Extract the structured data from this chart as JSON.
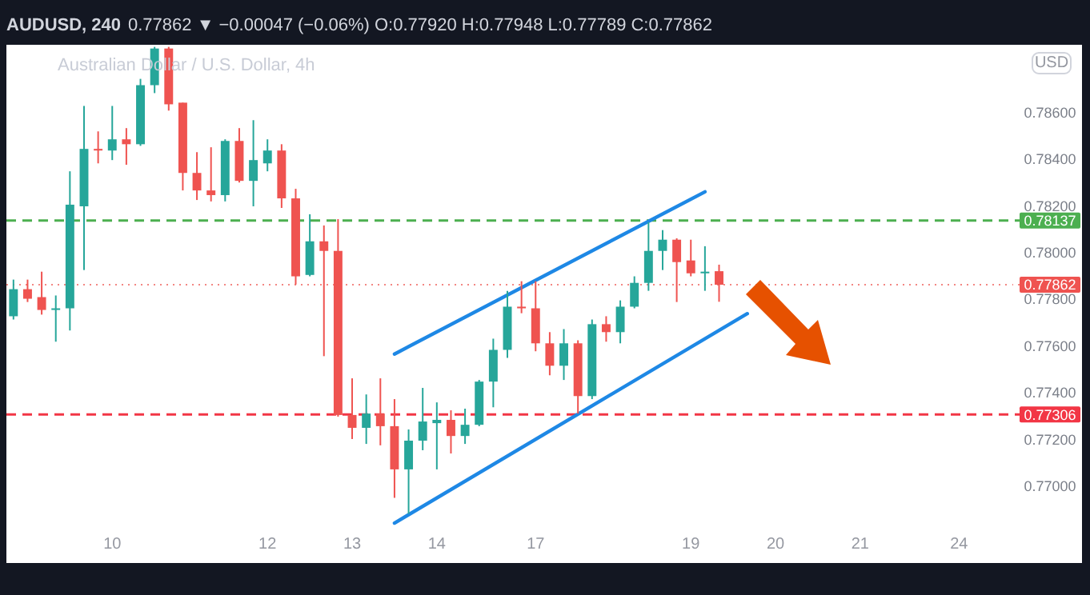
{
  "chart_data": {
    "type": "candlestick",
    "title": "AUDUSD, 240",
    "subtitle": "0.77862 ▼ −0.00047 (−0.06%) O:0.77920 H:0.77948 L:0.77789 C:0.77862",
    "annotations": [
      "Australian Dollar / U.S. Dollar, 4h",
      "USD"
    ],
    "categories": [
      null,
      null,
      null,
      null,
      null,
      null,
      null,
      "10",
      null,
      null,
      null,
      null,
      null,
      null,
      null,
      null,
      null,
      null,
      "12",
      null,
      null,
      null,
      null,
      null,
      "13",
      null,
      null,
      null,
      null,
      null,
      "14",
      null,
      null,
      null,
      null,
      null,
      null,
      "17",
      null,
      null,
      null,
      null,
      null,
      null,
      null,
      null,
      null,
      null,
      "19",
      null,
      null,
      null,
      null,
      null,
      "20",
      null,
      null,
      null,
      null,
      null,
      "21",
      null,
      null,
      null,
      null,
      null,
      null,
      "24",
      null,
      null,
      null
    ],
    "ohlc": [
      [
        0.77727,
        0.77884,
        0.77713,
        0.77843
      ],
      [
        0.77843,
        0.77884,
        0.77788,
        0.77802
      ],
      [
        0.77809,
        0.77918,
        0.77734,
        0.77754
      ],
      [
        0.77754,
        0.77816,
        0.77618,
        0.77761
      ],
      [
        0.77761,
        0.78348,
        0.77666,
        0.78205
      ],
      [
        0.78198,
        0.78628,
        0.77925,
        0.78444
      ],
      [
        0.78444,
        0.78519,
        0.78382,
        0.78437
      ],
      [
        0.78437,
        0.78628,
        0.78396,
        0.78485
      ],
      [
        0.78485,
        0.78533,
        0.78376,
        0.78464
      ],
      [
        0.78464,
        0.78744,
        0.78457,
        0.78717
      ],
      [
        0.78717,
        0.78881,
        0.78683,
        0.78874
      ],
      [
        0.78874,
        0.78881,
        0.78608,
        0.78635
      ],
      [
        0.78642,
        0.78642,
        0.78266,
        0.78341
      ],
      [
        0.78341,
        0.7843,
        0.78225,
        0.78266
      ],
      [
        0.78266,
        0.78451,
        0.78219,
        0.78246
      ],
      [
        0.78246,
        0.78485,
        0.78219,
        0.78478
      ],
      [
        0.78478,
        0.78533,
        0.783,
        0.78307
      ],
      [
        0.78307,
        0.78567,
        0.78198,
        0.78396
      ],
      [
        0.78382,
        0.78485,
        0.78348,
        0.78437
      ],
      [
        0.78437,
        0.78464,
        0.78191,
        0.78232
      ],
      [
        0.78232,
        0.78273,
        0.77863,
        0.77898
      ],
      [
        0.77904,
        0.78164,
        0.77898,
        0.78048
      ],
      [
        0.78048,
        0.78116,
        0.77556,
        0.78007
      ],
      [
        0.78007,
        0.78143,
        0.77297,
        0.77304
      ],
      [
        0.77304,
        0.77461,
        0.77201,
        0.77249
      ],
      [
        0.77249,
        0.77392,
        0.7718,
        0.7731
      ],
      [
        0.7731,
        0.77461,
        0.77174,
        0.77256
      ],
      [
        0.77256,
        0.77372,
        0.76949,
        0.77071
      ],
      [
        0.77071,
        0.77242,
        0.7688,
        0.77194
      ],
      [
        0.77194,
        0.7742,
        0.77153,
        0.77276
      ],
      [
        0.77269,
        0.77358,
        0.77071,
        0.77283
      ],
      [
        0.77283,
        0.77324,
        0.77139,
        0.77214
      ],
      [
        0.77214,
        0.77331,
        0.7718,
        0.77262
      ],
      [
        0.77262,
        0.77454,
        0.77256,
        0.77447
      ],
      [
        0.77447,
        0.77631,
        0.77337,
        0.77583
      ],
      [
        0.77583,
        0.77836,
        0.77549,
        0.77768
      ],
      [
        0.77768,
        0.77877,
        0.7774,
        0.77761
      ],
      [
        0.77761,
        0.77877,
        0.77577,
        0.77611
      ],
      [
        0.77611,
        0.77659,
        0.77474,
        0.77515
      ],
      [
        0.77515,
        0.77672,
        0.77454,
        0.77611
      ],
      [
        0.77611,
        0.77624,
        0.7731,
        0.77385
      ],
      [
        0.77385,
        0.77713,
        0.77372,
        0.77693
      ],
      [
        0.77693,
        0.77727,
        0.77618,
        0.77659
      ],
      [
        0.77659,
        0.77795,
        0.77611,
        0.77768
      ],
      [
        0.77768,
        0.77898,
        0.77761,
        0.7787
      ],
      [
        0.7787,
        0.7813,
        0.77836,
        0.78007
      ],
      [
        0.78007,
        0.78096,
        0.77925,
        0.78055
      ],
      [
        0.78055,
        0.78061,
        0.77788,
        0.77959
      ],
      [
        0.77966,
        0.78055,
        0.77898,
        0.77911
      ],
      [
        0.77911,
        0.78027,
        0.77836,
        0.77918
      ],
      [
        0.7792,
        0.77948,
        0.77789,
        0.77862
      ],
      null,
      null,
      null,
      null,
      null,
      null,
      null,
      null,
      null,
      null,
      null,
      null,
      null,
      null,
      null,
      null,
      null,
      null,
      null,
      null
    ],
    "colors": [
      "#26a69a",
      "#ef5350",
      "#ef5350",
      "#26a69a",
      "#26a69a",
      "#26a69a",
      "#ef5350",
      "#26a69a",
      "#ef5350",
      "#26a69a",
      "#26a69a",
      "#ef5350",
      "#ef5350",
      "#ef5350",
      "#ef5350",
      "#26a69a",
      "#ef5350",
      "#26a69a",
      "#26a69a",
      "#ef5350",
      "#ef5350",
      "#26a69a",
      "#ef5350",
      "#ef5350",
      "#ef5350",
      "#26a69a",
      "#ef5350",
      "#ef5350",
      "#26a69a",
      "#26a69a",
      "#26a69a",
      "#ef5350",
      "#26a69a",
      "#26a69a",
      "#26a69a",
      "#26a69a",
      "#ef5350",
      "#ef5350",
      "#ef5350",
      "#26a69a",
      "#ef5350",
      "#26a69a",
      "#ef5350",
      "#26a69a",
      "#26a69a",
      "#26a69a",
      "#26a69a",
      "#ef5350",
      "#ef5350",
      "#26a69a",
      "#ef5350",
      null,
      null,
      null,
      null,
      null,
      null,
      null,
      null,
      null,
      null,
      null,
      null,
      null,
      null,
      null,
      null,
      null,
      null,
      null,
      null
    ],
    "series": [
      {
        "type": "line",
        "color": "#1e88e5",
        "values": [
          null,
          null,
          null,
          null,
          null,
          null,
          null,
          null,
          null,
          null,
          null,
          null,
          null,
          null,
          null,
          null,
          null,
          null,
          null,
          null,
          null,
          null,
          null,
          null,
          null,
          null,
          null,
          0.77565,
          null,
          null,
          null,
          null,
          null,
          null,
          null,
          null,
          null,
          null,
          null,
          null,
          null,
          null,
          null,
          null,
          null,
          null,
          null,
          null,
          null,
          0.7826,
          null,
          null,
          null,
          null,
          null,
          null,
          null,
          null,
          null,
          null,
          null,
          null,
          null,
          null,
          null,
          null,
          null,
          null,
          null,
          null,
          null
        ]
      },
      {
        "type": "line",
        "color": "#1e88e5",
        "values": [
          null,
          null,
          null,
          null,
          null,
          null,
          null,
          null,
          null,
          null,
          null,
          null,
          null,
          null,
          null,
          null,
          null,
          null,
          null,
          null,
          null,
          null,
          null,
          null,
          null,
          null,
          null,
          0.76841,
          null,
          null,
          null,
          null,
          null,
          null,
          null,
          null,
          null,
          null,
          null,
          null,
          null,
          null,
          null,
          null,
          null,
          null,
          null,
          null,
          null,
          null,
          null,
          null,
          0.77738,
          null,
          null,
          null,
          null,
          null,
          null,
          null,
          null,
          null,
          null,
          null,
          null,
          null,
          null,
          null,
          null,
          null,
          null
        ]
      }
    ],
    "ref_lines": [
      {
        "axis": "y",
        "value": 0.78137,
        "label": "0.78137",
        "color": "#4caf50",
        "line_style": "dashed"
      },
      {
        "axis": "y",
        "value": 0.77306,
        "label": "0.77306",
        "color": "#f23645",
        "line_style": "dashed"
      },
      {
        "axis": "y",
        "value": 0.77862,
        "label": "0.77862",
        "color": "#ef5350",
        "line_style": "dotted"
      }
    ],
    "ylim": [
      0.768,
      0.7889
    ],
    "yticks": [
      {
        "value": 0.77,
        "label": "0.77000"
      },
      {
        "value": 0.772,
        "label": "0.77200"
      },
      {
        "value": 0.774,
        "label": "0.77400"
      },
      {
        "value": 0.776,
        "label": "0.77600"
      },
      {
        "value": 0.778,
        "label": "0.77800"
      },
      {
        "value": 0.78,
        "label": "0.78000"
      },
      {
        "value": 0.782,
        "label": "0.78200"
      },
      {
        "value": 0.784,
        "label": "0.78400"
      },
      {
        "value": 0.786,
        "label": "0.78600"
      }
    ]
  }
}
